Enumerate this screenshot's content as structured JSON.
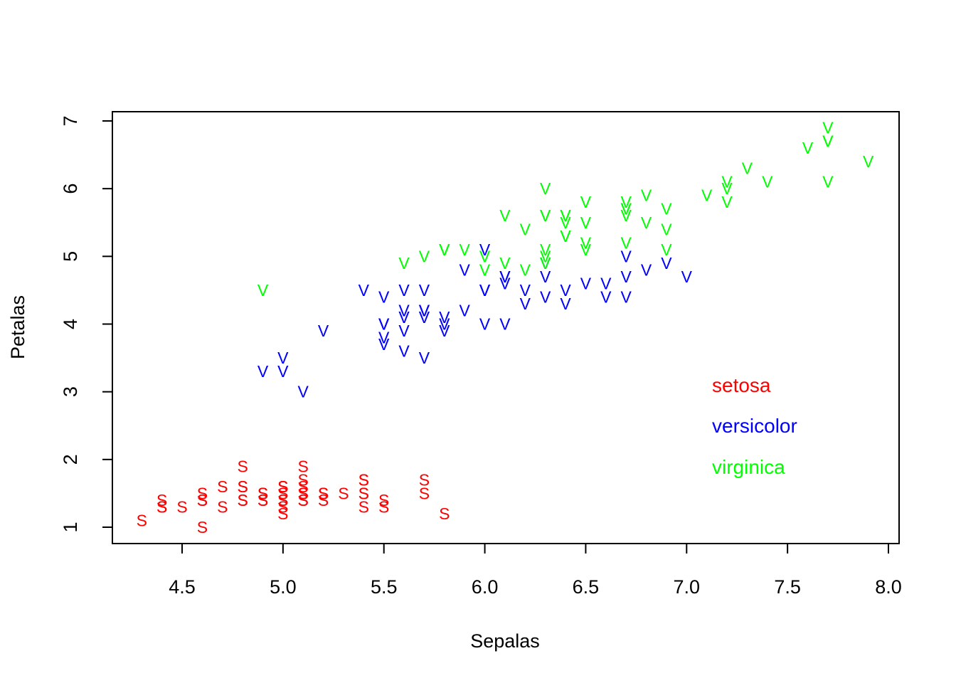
{
  "chart_data": {
    "type": "scatter",
    "title": "",
    "xlabel": "Sepalas",
    "ylabel": "Petalas",
    "xlim": [
      4.2,
      8.0
    ],
    "ylim": [
      0.8,
      7.1
    ],
    "x_ticks": [
      "4.5",
      "5.0",
      "5.5",
      "6.0",
      "6.5",
      "7.0",
      "7.5",
      "8.0"
    ],
    "y_ticks": [
      "1",
      "2",
      "3",
      "4",
      "5",
      "6",
      "7"
    ],
    "grid": false,
    "legend_position": "right",
    "series": [
      {
        "name": "setosa",
        "marker": "S",
        "color": "#ff0000",
        "points": [
          [
            5.1,
            1.4
          ],
          [
            4.9,
            1.4
          ],
          [
            4.7,
            1.3
          ],
          [
            4.6,
            1.5
          ],
          [
            5.0,
            1.4
          ],
          [
            5.4,
            1.7
          ],
          [
            4.6,
            1.4
          ],
          [
            5.0,
            1.5
          ],
          [
            4.4,
            1.4
          ],
          [
            4.9,
            1.5
          ],
          [
            5.4,
            1.5
          ],
          [
            4.8,
            1.6
          ],
          [
            4.8,
            1.4
          ],
          [
            4.3,
            1.1
          ],
          [
            5.8,
            1.2
          ],
          [
            5.7,
            1.5
          ],
          [
            5.4,
            1.3
          ],
          [
            5.1,
            1.4
          ],
          [
            5.7,
            1.7
          ],
          [
            5.1,
            1.5
          ],
          [
            5.4,
            1.7
          ],
          [
            5.1,
            1.5
          ],
          [
            4.6,
            1.0
          ],
          [
            5.1,
            1.7
          ],
          [
            4.8,
            1.9
          ],
          [
            5.0,
            1.6
          ],
          [
            5.0,
            1.6
          ],
          [
            5.2,
            1.5
          ],
          [
            5.2,
            1.4
          ],
          [
            4.7,
            1.6
          ],
          [
            4.8,
            1.6
          ],
          [
            5.4,
            1.5
          ],
          [
            5.2,
            1.5
          ],
          [
            5.5,
            1.4
          ],
          [
            4.9,
            1.5
          ],
          [
            5.0,
            1.2
          ],
          [
            5.5,
            1.3
          ],
          [
            4.9,
            1.4
          ],
          [
            4.4,
            1.3
          ],
          [
            5.1,
            1.5
          ],
          [
            5.0,
            1.3
          ],
          [
            4.5,
            1.3
          ],
          [
            4.4,
            1.3
          ],
          [
            5.0,
            1.6
          ],
          [
            5.1,
            1.9
          ],
          [
            4.8,
            1.4
          ],
          [
            5.1,
            1.6
          ],
          [
            4.6,
            1.4
          ],
          [
            5.3,
            1.5
          ],
          [
            5.0,
            1.4
          ]
        ]
      },
      {
        "name": "versicolor",
        "marker": "V",
        "color": "#0000ff",
        "points": [
          [
            7.0,
            4.7
          ],
          [
            6.4,
            4.5
          ],
          [
            6.9,
            4.9
          ],
          [
            5.5,
            4.0
          ],
          [
            6.5,
            4.6
          ],
          [
            5.7,
            4.5
          ],
          [
            6.3,
            4.7
          ],
          [
            4.9,
            3.3
          ],
          [
            6.6,
            4.6
          ],
          [
            5.2,
            3.9
          ],
          [
            5.0,
            3.5
          ],
          [
            5.9,
            4.2
          ],
          [
            6.0,
            4.0
          ],
          [
            6.1,
            4.7
          ],
          [
            5.6,
            3.6
          ],
          [
            6.7,
            4.4
          ],
          [
            5.6,
            4.5
          ],
          [
            5.8,
            4.1
          ],
          [
            6.2,
            4.5
          ],
          [
            5.6,
            3.9
          ],
          [
            5.9,
            4.8
          ],
          [
            6.1,
            4.0
          ],
          [
            6.3,
            4.9
          ],
          [
            6.1,
            4.7
          ],
          [
            6.4,
            4.3
          ],
          [
            6.6,
            4.4
          ],
          [
            6.8,
            4.8
          ],
          [
            6.7,
            5.0
          ],
          [
            6.0,
            4.5
          ],
          [
            5.7,
            3.5
          ],
          [
            5.5,
            3.8
          ],
          [
            5.5,
            3.7
          ],
          [
            5.8,
            3.9
          ],
          [
            6.0,
            5.1
          ],
          [
            5.4,
            4.5
          ],
          [
            6.0,
            4.5
          ],
          [
            6.7,
            4.7
          ],
          [
            6.3,
            4.4
          ],
          [
            5.6,
            4.1
          ],
          [
            5.5,
            4.0
          ],
          [
            5.5,
            4.4
          ],
          [
            6.1,
            4.6
          ],
          [
            5.8,
            4.0
          ],
          [
            5.0,
            3.3
          ],
          [
            5.6,
            4.2
          ],
          [
            5.7,
            4.2
          ],
          [
            5.7,
            4.2
          ],
          [
            6.2,
            4.3
          ],
          [
            5.1,
            3.0
          ],
          [
            5.7,
            4.1
          ]
        ]
      },
      {
        "name": "virginica",
        "marker": "V",
        "color": "#00ff00",
        "points": [
          [
            6.3,
            6.0
          ],
          [
            5.8,
            5.1
          ],
          [
            7.1,
            5.9
          ],
          [
            6.3,
            5.6
          ],
          [
            6.5,
            5.8
          ],
          [
            7.6,
            6.6
          ],
          [
            4.9,
            4.5
          ],
          [
            7.3,
            6.3
          ],
          [
            6.7,
            5.8
          ],
          [
            7.2,
            6.1
          ],
          [
            6.5,
            5.1
          ],
          [
            6.4,
            5.3
          ],
          [
            6.8,
            5.5
          ],
          [
            5.7,
            5.0
          ],
          [
            5.8,
            5.1
          ],
          [
            6.4,
            5.3
          ],
          [
            6.5,
            5.5
          ],
          [
            7.7,
            6.7
          ],
          [
            7.7,
            6.9
          ],
          [
            6.0,
            5.0
          ],
          [
            6.9,
            5.7
          ],
          [
            5.6,
            4.9
          ],
          [
            7.7,
            6.7
          ],
          [
            6.3,
            4.9
          ],
          [
            6.7,
            5.7
          ],
          [
            7.2,
            6.0
          ],
          [
            6.2,
            4.8
          ],
          [
            6.1,
            4.9
          ],
          [
            6.4,
            5.6
          ],
          [
            7.2,
            5.8
          ],
          [
            7.4,
            6.1
          ],
          [
            7.9,
            6.4
          ],
          [
            6.4,
            5.6
          ],
          [
            6.3,
            5.1
          ],
          [
            6.1,
            5.6
          ],
          [
            7.7,
            6.1
          ],
          [
            6.3,
            5.6
          ],
          [
            6.4,
            5.5
          ],
          [
            6.0,
            4.8
          ],
          [
            6.9,
            5.4
          ],
          [
            6.7,
            5.6
          ],
          [
            6.9,
            5.1
          ],
          [
            5.8,
            5.1
          ],
          [
            6.8,
            5.9
          ],
          [
            6.7,
            5.7
          ],
          [
            6.7,
            5.2
          ],
          [
            6.3,
            5.0
          ],
          [
            6.5,
            5.2
          ],
          [
            6.2,
            5.4
          ],
          [
            5.9,
            5.1
          ]
        ]
      }
    ],
    "legend": [
      {
        "label": "setosa",
        "color": "#ff0000"
      },
      {
        "label": "versicolor",
        "color": "#0000ff"
      },
      {
        "label": "virginica",
        "color": "#00ff00"
      }
    ]
  }
}
